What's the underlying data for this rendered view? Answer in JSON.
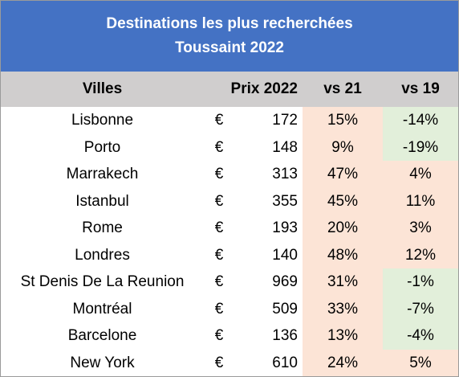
{
  "chart_data": {
    "type": "table",
    "title": "Destinations les plus recherchées",
    "subtitle": "Toussaint 2022",
    "columns": [
      "Villes",
      "Prix 2022",
      "vs 21",
      "vs 19"
    ],
    "currency": "€",
    "colors": {
      "header_bg": "#4472c4",
      "column_header_bg": "#d0cece",
      "positive_bg": "#fce4d6",
      "negative_bg": "#e2efda"
    },
    "rows": [
      {
        "city": "Lisbonne",
        "price": "172",
        "vs21": "15%",
        "vs19": "-14%"
      },
      {
        "city": "Porto",
        "price": "148",
        "vs21": "9%",
        "vs19": "-19%"
      },
      {
        "city": "Marrakech",
        "price": "313",
        "vs21": "47%",
        "vs19": "4%"
      },
      {
        "city": "Istanbul",
        "price": "355",
        "vs21": "45%",
        "vs19": "11%"
      },
      {
        "city": "Rome",
        "price": "193",
        "vs21": "20%",
        "vs19": "3%"
      },
      {
        "city": "Londres",
        "price": "140",
        "vs21": "48%",
        "vs19": "12%"
      },
      {
        "city": "St Denis De La Reunion",
        "price": "969",
        "vs21": "31%",
        "vs19": "-1%"
      },
      {
        "city": "Montréal",
        "price": "509",
        "vs21": "33%",
        "vs19": "-7%"
      },
      {
        "city": "Barcelone",
        "price": "136",
        "vs21": "13%",
        "vs19": "-4%"
      },
      {
        "city": "New York",
        "price": "610",
        "vs21": "24%",
        "vs19": "5%"
      }
    ]
  }
}
